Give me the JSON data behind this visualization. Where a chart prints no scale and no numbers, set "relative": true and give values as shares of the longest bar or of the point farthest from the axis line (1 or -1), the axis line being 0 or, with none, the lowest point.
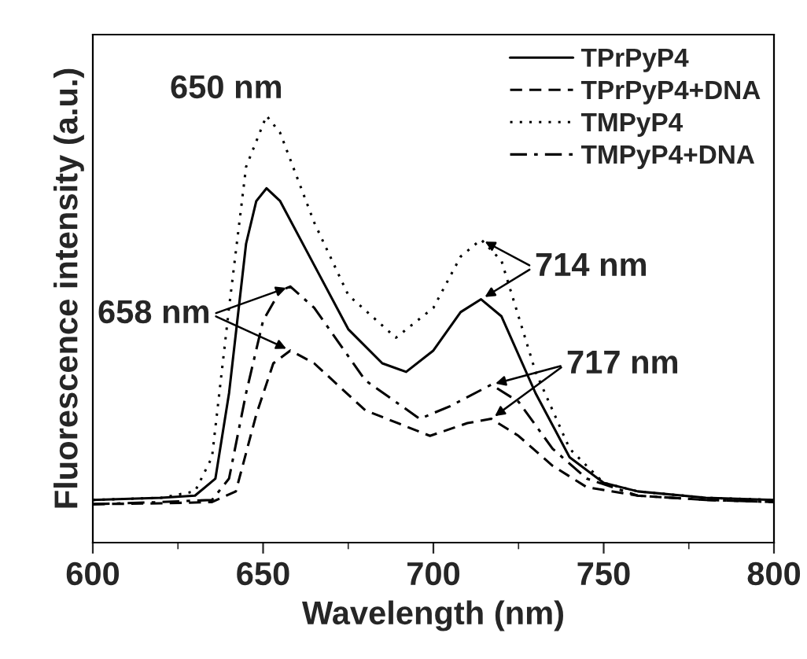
{
  "chart_data": {
    "type": "line",
    "relative": true,
    "xlabel": "Wavelength (nm)",
    "ylabel": "Fluorescence intensity (a.u.)",
    "xlim": [
      600,
      800
    ],
    "xticks": [
      600,
      {
        "value": 625,
        "label": null
      },
      650,
      {
        "value": 675,
        "label": null
      },
      700,
      {
        "value": 725,
        "label": null
      },
      750,
      {
        "value": 775,
        "label": null
      },
      800
    ],
    "legend": "top right",
    "grid": false,
    "series": [
      {
        "name": "TPrPyP4",
        "color": "#000000",
        "line_style": "solid",
        "x": [
          600,
          620,
          630,
          636,
          640,
          645,
          648,
          651,
          655,
          665,
          675,
          685,
          692,
          700,
          708,
          714,
          720,
          730,
          740,
          750,
          760,
          780,
          800
        ],
        "values": [
          0.1,
          0.105,
          0.11,
          0.15,
          0.35,
          0.7,
          0.8,
          0.83,
          0.8,
          0.65,
          0.5,
          0.42,
          0.4,
          0.45,
          0.54,
          0.57,
          0.53,
          0.35,
          0.2,
          0.14,
          0.12,
          0.105,
          0.1
        ]
      },
      {
        "name": "TPrPyP4+DNA",
        "color": "#000000",
        "line_style": "dashed",
        "x": [
          600,
          620,
          635,
          642,
          648,
          653,
          658,
          665,
          680,
          699,
          710,
          717,
          725,
          735,
          745,
          760,
          780,
          800
        ],
        "values": [
          0.09,
          0.092,
          0.095,
          0.12,
          0.3,
          0.42,
          0.45,
          0.42,
          0.31,
          0.25,
          0.28,
          0.29,
          0.25,
          0.18,
          0.13,
          0.11,
          0.1,
          0.095
        ]
      },
      {
        "name": "TMPyP4",
        "color": "#000000",
        "line_style": "dotted",
        "x": [
          600,
          620,
          630,
          635,
          640,
          645,
          651,
          655,
          665,
          675,
          689,
          700,
          708,
          714,
          720,
          730,
          740,
          750,
          760,
          780,
          800
        ],
        "values": [
          0.1,
          0.105,
          0.12,
          0.2,
          0.55,
          0.88,
          1.0,
          0.96,
          0.75,
          0.58,
          0.48,
          0.55,
          0.67,
          0.71,
          0.66,
          0.4,
          0.22,
          0.14,
          0.12,
          0.105,
          0.1
        ]
      },
      {
        "name": "TMPyP4+DNA",
        "color": "#000000",
        "line_style": "dashdot",
        "x": [
          600,
          620,
          635,
          640,
          645,
          650,
          655,
          658,
          665,
          680,
          696,
          705,
          717,
          725,
          735,
          745,
          760,
          780,
          800
        ],
        "values": [
          0.09,
          0.095,
          0.1,
          0.15,
          0.35,
          0.52,
          0.59,
          0.6,
          0.55,
          0.38,
          0.29,
          0.32,
          0.37,
          0.33,
          0.22,
          0.15,
          0.11,
          0.1,
          0.095
        ]
      }
    ],
    "annotations": [
      "650 nm",
      {
        "text": "658 nm",
        "x": 658,
        "y": 0.6
      },
      {
        "text": "714 nm",
        "x": 714,
        "y": 0.71
      },
      {
        "text": "717 nm",
        "x": 717,
        "y": 0.37
      }
    ]
  }
}
